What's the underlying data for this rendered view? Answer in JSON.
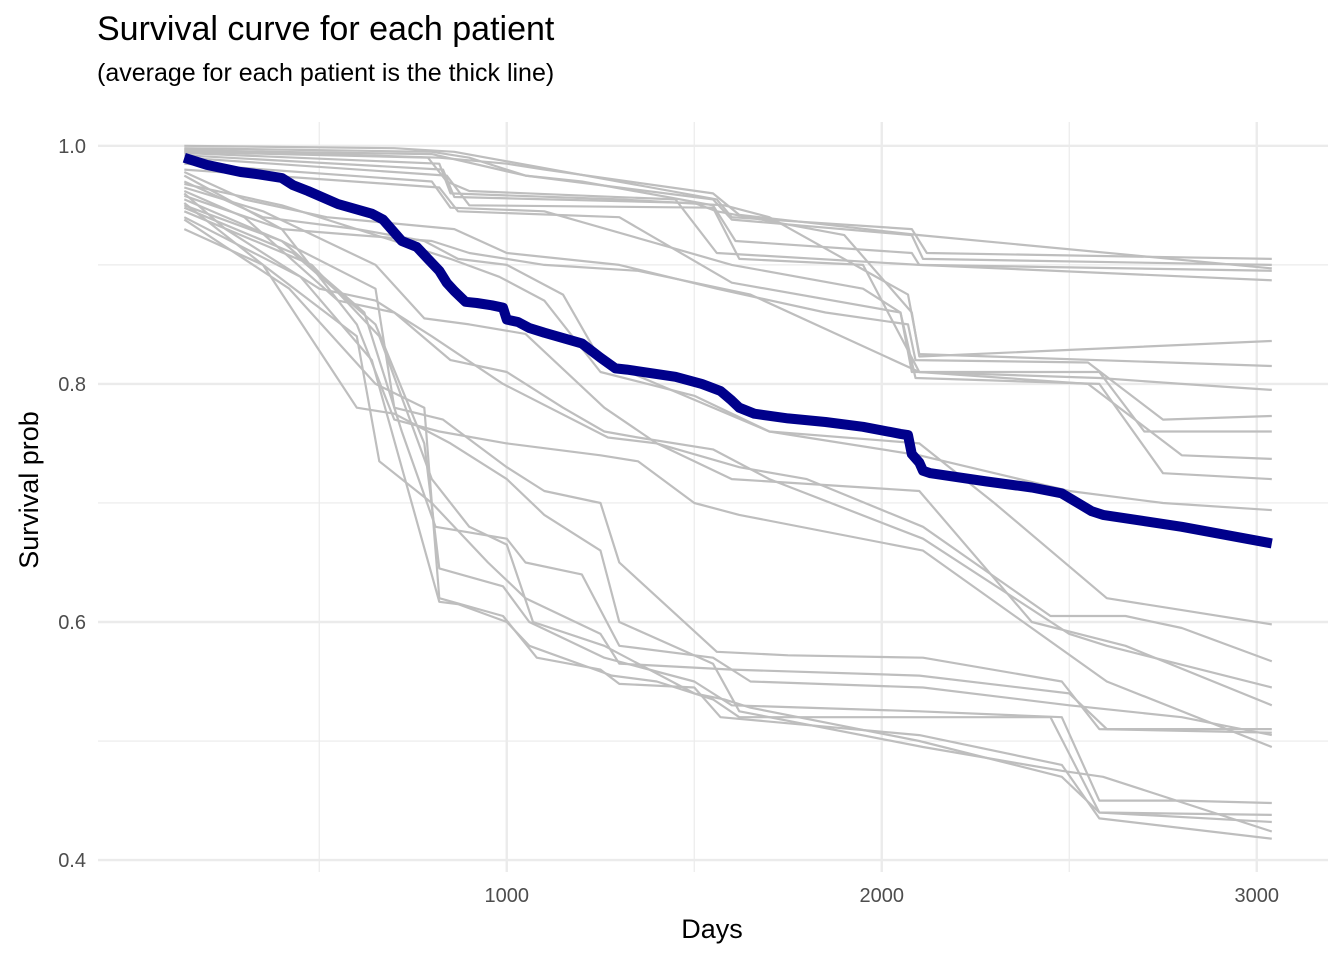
{
  "chart_data": {
    "type": "line",
    "title": "Survival curve for each patient",
    "subtitle": "(average for each patient is the thick line)",
    "xlabel": "Days",
    "ylabel": "Survival prob",
    "xlim": [
      -90,
      3190
    ],
    "ylim": [
      0.39,
      1.02
    ],
    "x_ticks": [
      1000,
      2000,
      3000
    ],
    "x_tick_labels": [
      "1000",
      "2000",
      "3000"
    ],
    "y_ticks": [
      0.4,
      0.6,
      0.8,
      1.0
    ],
    "y_tick_labels": [
      "0.4",
      "0.6",
      "0.8",
      "1.0"
    ],
    "grid": true,
    "legend": "none",
    "colors": {
      "patient": "#bebebe",
      "average": "#00008b",
      "grid": "#ebebeb"
    },
    "average": {
      "x": [
        140,
        200,
        290,
        340,
        400,
        430,
        470,
        550,
        640,
        670,
        720,
        760,
        790,
        820,
        840,
        860,
        890,
        920,
        960,
        990,
        1000,
        1030,
        1060,
        1100,
        1200,
        1250,
        1290,
        1320,
        1450,
        1520,
        1570,
        1600,
        1620,
        1660,
        1750,
        1850,
        1950,
        2050,
        2070,
        2080,
        2100,
        2110,
        2130,
        2280,
        2400,
        2480,
        2560,
        2590,
        2800,
        3040
      ],
      "y": [
        0.99,
        0.984,
        0.978,
        0.976,
        0.973,
        0.967,
        0.962,
        0.951,
        0.943,
        0.938,
        0.92,
        0.915,
        0.905,
        0.895,
        0.885,
        0.878,
        0.869,
        0.868,
        0.866,
        0.864,
        0.854,
        0.852,
        0.847,
        0.843,
        0.834,
        0.822,
        0.813,
        0.812,
        0.806,
        0.8,
        0.794,
        0.786,
        0.78,
        0.775,
        0.771,
        0.768,
        0.764,
        0.758,
        0.757,
        0.741,
        0.734,
        0.727,
        0.725,
        0.718,
        0.713,
        0.708,
        0.693,
        0.69,
        0.68,
        0.666
      ]
    },
    "patients": [
      {
        "x": [
          140,
          700,
          860,
          1560,
          1600,
          2080,
          2120,
          3040
        ],
        "y": [
          1.0,
          0.998,
          0.995,
          0.955,
          0.94,
          0.93,
          0.91,
          0.905
        ]
      },
      {
        "x": [
          140,
          800,
          900,
          1050,
          1550,
          1600,
          2080,
          2110,
          3040
        ],
        "y": [
          0.998,
          0.995,
          0.99,
          0.975,
          0.955,
          0.938,
          0.925,
          0.905,
          0.9
        ]
      },
      {
        "x": [
          140,
          820,
          1000,
          1100,
          1550,
          1620,
          2100,
          3040
        ],
        "y": [
          0.997,
          0.99,
          0.985,
          0.98,
          0.96,
          0.942,
          0.925,
          0.897
        ]
      },
      {
        "x": [
          140,
          800,
          1050,
          1200,
          1550,
          1610,
          2080,
          2100,
          3040
        ],
        "y": [
          0.996,
          0.993,
          0.975,
          0.97,
          0.95,
          0.92,
          0.91,
          0.9,
          0.895
        ]
      },
      {
        "x": [
          140,
          790,
          840,
          900,
          1450,
          1560,
          2100,
          3040
        ],
        "y": [
          0.995,
          0.99,
          0.97,
          0.962,
          0.955,
          0.91,
          0.9,
          0.887
        ]
      },
      {
        "x": [
          140,
          820,
          850,
          1300,
          1580,
          1700,
          2070,
          2100,
          3040
        ],
        "y": [
          0.994,
          0.985,
          0.96,
          0.955,
          0.95,
          0.94,
          0.875,
          0.825,
          0.815
        ]
      },
      {
        "x": [
          140,
          830,
          860,
          1500,
          1560,
          1900,
          2080,
          2100,
          3040
        ],
        "y": [
          0.992,
          0.98,
          0.957,
          0.952,
          0.945,
          0.925,
          0.86,
          0.823,
          0.836
        ]
      },
      {
        "x": [
          140,
          840,
          900,
          1550,
          1620,
          1950,
          2100,
          2580,
          2800,
          3040
        ],
        "y": [
          0.99,
          0.975,
          0.95,
          0.948,
          0.905,
          0.9,
          0.81,
          0.805,
          0.8,
          0.795
        ]
      },
      {
        "x": [
          140,
          800,
          850,
          1100,
          1600,
          1950,
          2050,
          2080,
          2580,
          2700,
          3040
        ],
        "y": [
          0.985,
          0.97,
          0.948,
          0.945,
          0.9,
          0.88,
          0.86,
          0.81,
          0.81,
          0.76,
          0.76
        ]
      },
      {
        "x": [
          140,
          820,
          870,
          1300,
          1600,
          2050,
          2090,
          2580,
          2750,
          3040
        ],
        "y": [
          0.98,
          0.965,
          0.945,
          0.94,
          0.885,
          0.86,
          0.805,
          0.8,
          0.725,
          0.72
        ]
      },
      {
        "x": [
          140,
          300,
          520,
          860,
          1000,
          1300,
          1560,
          1850,
          2070,
          2090,
          2550,
          2750,
          3040
        ],
        "y": [
          0.978,
          0.955,
          0.94,
          0.93,
          0.91,
          0.9,
          0.88,
          0.86,
          0.85,
          0.82,
          0.818,
          0.77,
          0.773
        ]
      },
      {
        "x": [
          140,
          400,
          600,
          800,
          900,
          1100,
          1350,
          1650,
          2100,
          2550,
          2800,
          3040
        ],
        "y": [
          0.975,
          0.93,
          0.925,
          0.92,
          0.91,
          0.9,
          0.895,
          0.875,
          0.81,
          0.8,
          0.74,
          0.737
        ]
      },
      {
        "x": [
          140,
          350,
          600,
          780,
          870,
          1000,
          1150,
          1250,
          1700,
          1800,
          2100,
          2500,
          2750,
          3040
        ],
        "y": [
          0.97,
          0.94,
          0.93,
          0.92,
          0.905,
          0.9,
          0.875,
          0.82,
          0.76,
          0.755,
          0.74,
          0.71,
          0.7,
          0.694
        ]
      },
      {
        "x": [
          140,
          400,
          700,
          850,
          980,
          1100,
          1250,
          1500,
          1700,
          2100,
          2300,
          2600,
          2800,
          3040
        ],
        "y": [
          0.968,
          0.95,
          0.92,
          0.905,
          0.89,
          0.87,
          0.81,
          0.79,
          0.76,
          0.75,
          0.7,
          0.62,
          0.61,
          0.598
        ]
      },
      {
        "x": [
          140,
          350,
          650,
          780,
          900,
          1050,
          1260,
          1400,
          1620,
          1800,
          2110,
          2450,
          2650,
          2800,
          3040
        ],
        "y": [
          0.965,
          0.945,
          0.9,
          0.855,
          0.85,
          0.842,
          0.78,
          0.75,
          0.73,
          0.72,
          0.68,
          0.605,
          0.605,
          0.595,
          0.567
        ]
      },
      {
        "x": [
          140,
          300,
          550,
          700,
          850,
          1000,
          1150,
          1260,
          1350,
          1550,
          1700,
          2110,
          2500,
          2600,
          3040
        ],
        "y": [
          0.962,
          0.94,
          0.87,
          0.86,
          0.82,
          0.81,
          0.78,
          0.76,
          0.755,
          0.745,
          0.72,
          0.67,
          0.59,
          0.58,
          0.545
        ]
      },
      {
        "x": [
          140,
          250,
          500,
          650,
          800,
          990,
          1270,
          1400,
          1600,
          2100,
          2400,
          2650,
          3040
        ],
        "y": [
          0.96,
          0.93,
          0.88,
          0.87,
          0.84,
          0.8,
          0.755,
          0.75,
          0.72,
          0.71,
          0.6,
          0.58,
          0.53
        ]
      },
      {
        "x": [
          140,
          400,
          600,
          700,
          820,
          1000,
          1250,
          1350,
          1500,
          1620,
          2110,
          2600,
          3040
        ],
        "y": [
          0.958,
          0.93,
          0.85,
          0.77,
          0.76,
          0.75,
          0.74,
          0.735,
          0.7,
          0.69,
          0.66,
          0.55,
          0.495
        ]
      },
      {
        "x": [
          140,
          400,
          650,
          700,
          830,
          1000,
          1100,
          1250,
          1300,
          1560,
          1750,
          2110,
          2480,
          2580,
          3040
        ],
        "y": [
          0.955,
          0.92,
          0.88,
          0.78,
          0.77,
          0.73,
          0.71,
          0.7,
          0.65,
          0.575,
          0.572,
          0.57,
          0.55,
          0.51,
          0.507
        ]
      },
      {
        "x": [
          140,
          350,
          600,
          660,
          800,
          950,
          1050,
          1250,
          1300,
          1600,
          2100,
          2500,
          2600,
          3040
        ],
        "y": [
          0.952,
          0.9,
          0.84,
          0.735,
          0.7,
          0.65,
          0.62,
          0.59,
          0.565,
          0.56,
          0.555,
          0.54,
          0.51,
          0.51
        ]
      },
      {
        "x": [
          140,
          400,
          620,
          720,
          810,
          1000,
          1050,
          1200,
          1300,
          1550,
          1650,
          2110,
          2500,
          2800,
          3040
        ],
        "y": [
          0.95,
          0.92,
          0.86,
          0.76,
          0.68,
          0.67,
          0.65,
          0.64,
          0.58,
          0.57,
          0.55,
          0.545,
          0.53,
          0.52,
          0.505
        ]
      },
      {
        "x": [
          140,
          430,
          650,
          780,
          820,
          990,
          1060,
          1260,
          1500,
          1600,
          2100,
          2480,
          2580,
          2800,
          3040
        ],
        "y": [
          0.948,
          0.91,
          0.85,
          0.75,
          0.645,
          0.63,
          0.6,
          0.57,
          0.55,
          0.53,
          0.525,
          0.52,
          0.45,
          0.45,
          0.448
        ]
      },
      {
        "x": [
          140,
          480,
          660,
          800,
          900,
          1000,
          1070,
          1260,
          1500,
          1580,
          1650,
          2100,
          2480,
          2580,
          3040
        ],
        "y": [
          0.945,
          0.9,
          0.84,
          0.72,
          0.68,
          0.665,
          0.6,
          0.58,
          0.54,
          0.535,
          0.528,
          0.5,
          0.47,
          0.44,
          0.438
        ]
      },
      {
        "x": [
          140,
          450,
          640,
          820,
          870,
          1000,
          1060,
          1280,
          1400,
          1550,
          1620,
          2110,
          2450,
          2580,
          3040
        ],
        "y": [
          0.94,
          0.89,
          0.82,
          0.617,
          0.615,
          0.6,
          0.58,
          0.555,
          0.55,
          0.535,
          0.52,
          0.52,
          0.52,
          0.44,
          0.432
        ]
      },
      {
        "x": [
          140,
          420,
          650,
          780,
          820,
          990,
          1080,
          1250,
          1300,
          1500,
          1570,
          2100,
          2480,
          2580,
          3040
        ],
        "y": [
          0.938,
          0.88,
          0.8,
          0.78,
          0.62,
          0.605,
          0.57,
          0.56,
          0.548,
          0.545,
          0.52,
          0.505,
          0.48,
          0.435,
          0.418
        ]
      },
      {
        "x": [
          140,
          350,
          600,
          700,
          850,
          1000,
          1100,
          1250,
          1300,
          1550,
          1620,
          2110,
          2480,
          2590,
          3040
        ],
        "y": [
          0.93,
          0.9,
          0.78,
          0.775,
          0.75,
          0.72,
          0.69,
          0.66,
          0.6,
          0.565,
          0.525,
          0.495,
          0.475,
          0.47,
          0.424
        ]
      }
    ]
  }
}
